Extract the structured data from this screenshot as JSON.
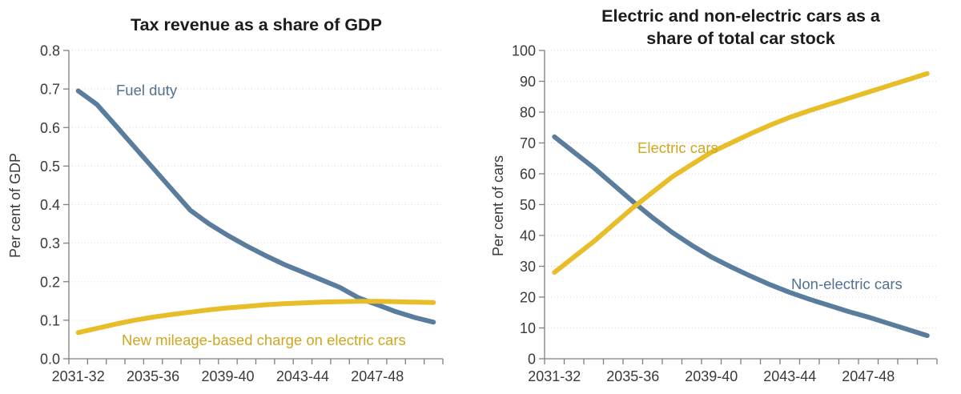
{
  "figure": {
    "background": "#ffffff"
  },
  "chart_data": [
    {
      "type": "line",
      "title": "Tax revenue as a share of GDP",
      "title_lines": [
        "Tax revenue as a share of GDP"
      ],
      "ylabel": "Per cent of GDP",
      "xlabel": "",
      "ylim": [
        0,
        0.8
      ],
      "ytick_step": 0.1,
      "ytick_decimals": 1,
      "grid": "horizontal-dotted",
      "legend": "inline-labels",
      "x_tick_labels": [
        "2031-32",
        "2035-36",
        "2039-40",
        "2043-44",
        "2047-48"
      ],
      "x": [
        "2031-32",
        "2032-33",
        "2033-34",
        "2034-35",
        "2035-36",
        "2036-37",
        "2037-38",
        "2038-39",
        "2039-40",
        "2040-41",
        "2041-42",
        "2042-43",
        "2043-44",
        "2044-45",
        "2045-46",
        "2046-47",
        "2047-48",
        "2048-49",
        "2049-50",
        "2050-51"
      ],
      "series": [
        {
          "name": "Fuel duty",
          "color": "#5a7c9d",
          "label_color": "#527190",
          "values": [
            0.695,
            0.66,
            0.605,
            0.55,
            0.495,
            0.44,
            0.385,
            0.35,
            0.32,
            0.293,
            0.268,
            0.245,
            0.225,
            0.205,
            0.185,
            0.158,
            0.14,
            0.122,
            0.107,
            0.095
          ]
        },
        {
          "name": "New mileage-based charge on electric cars",
          "color": "#e8bd2a",
          "label_color": "#cfa61e",
          "values": [
            0.068,
            0.079,
            0.09,
            0.1,
            0.108,
            0.115,
            0.121,
            0.127,
            0.132,
            0.136,
            0.14,
            0.143,
            0.145,
            0.147,
            0.148,
            0.149,
            0.149,
            0.148,
            0.147,
            0.146
          ]
        }
      ]
    },
    {
      "type": "line",
      "title": "Electric and non-electric cars as a share of total car stock",
      "title_lines": [
        "Electric and non-electric cars as a",
        "share of total car stock"
      ],
      "ylabel": "Per cent of cars",
      "xlabel": "",
      "ylim": [
        0,
        100
      ],
      "ytick_step": 10,
      "ytick_decimals": 0,
      "grid": "horizontal-dotted",
      "legend": "inline-labels",
      "x_tick_labels": [
        "2031-32",
        "2035-36",
        "2039-40",
        "2043-44",
        "2047-48"
      ],
      "x": [
        "2031-32",
        "2032-33",
        "2033-34",
        "2034-35",
        "2035-36",
        "2036-37",
        "2037-38",
        "2038-39",
        "2039-40",
        "2040-41",
        "2041-42",
        "2042-43",
        "2043-44",
        "2044-45",
        "2045-46",
        "2046-47",
        "2047-48",
        "2048-49",
        "2049-50",
        "2050-51"
      ],
      "series": [
        {
          "name": "Non-electric cars",
          "color": "#5a7c9d",
          "label_color": "#527190",
          "values": [
            72,
            67,
            62,
            56.5,
            51,
            45.8,
            41,
            36.8,
            33,
            29.8,
            26.8,
            24,
            21.5,
            19.3,
            17.3,
            15.3,
            13.5,
            11.5,
            9.5,
            7.5
          ]
        },
        {
          "name": "Electric cars",
          "color": "#e8bd2a",
          "label_color": "#cfa61e",
          "values": [
            28,
            33,
            38,
            43.5,
            49,
            54,
            59,
            63,
            67,
            70,
            73,
            75.8,
            78.3,
            80.5,
            82.5,
            84.5,
            86.5,
            88.5,
            90.5,
            92.5
          ]
        }
      ]
    }
  ]
}
